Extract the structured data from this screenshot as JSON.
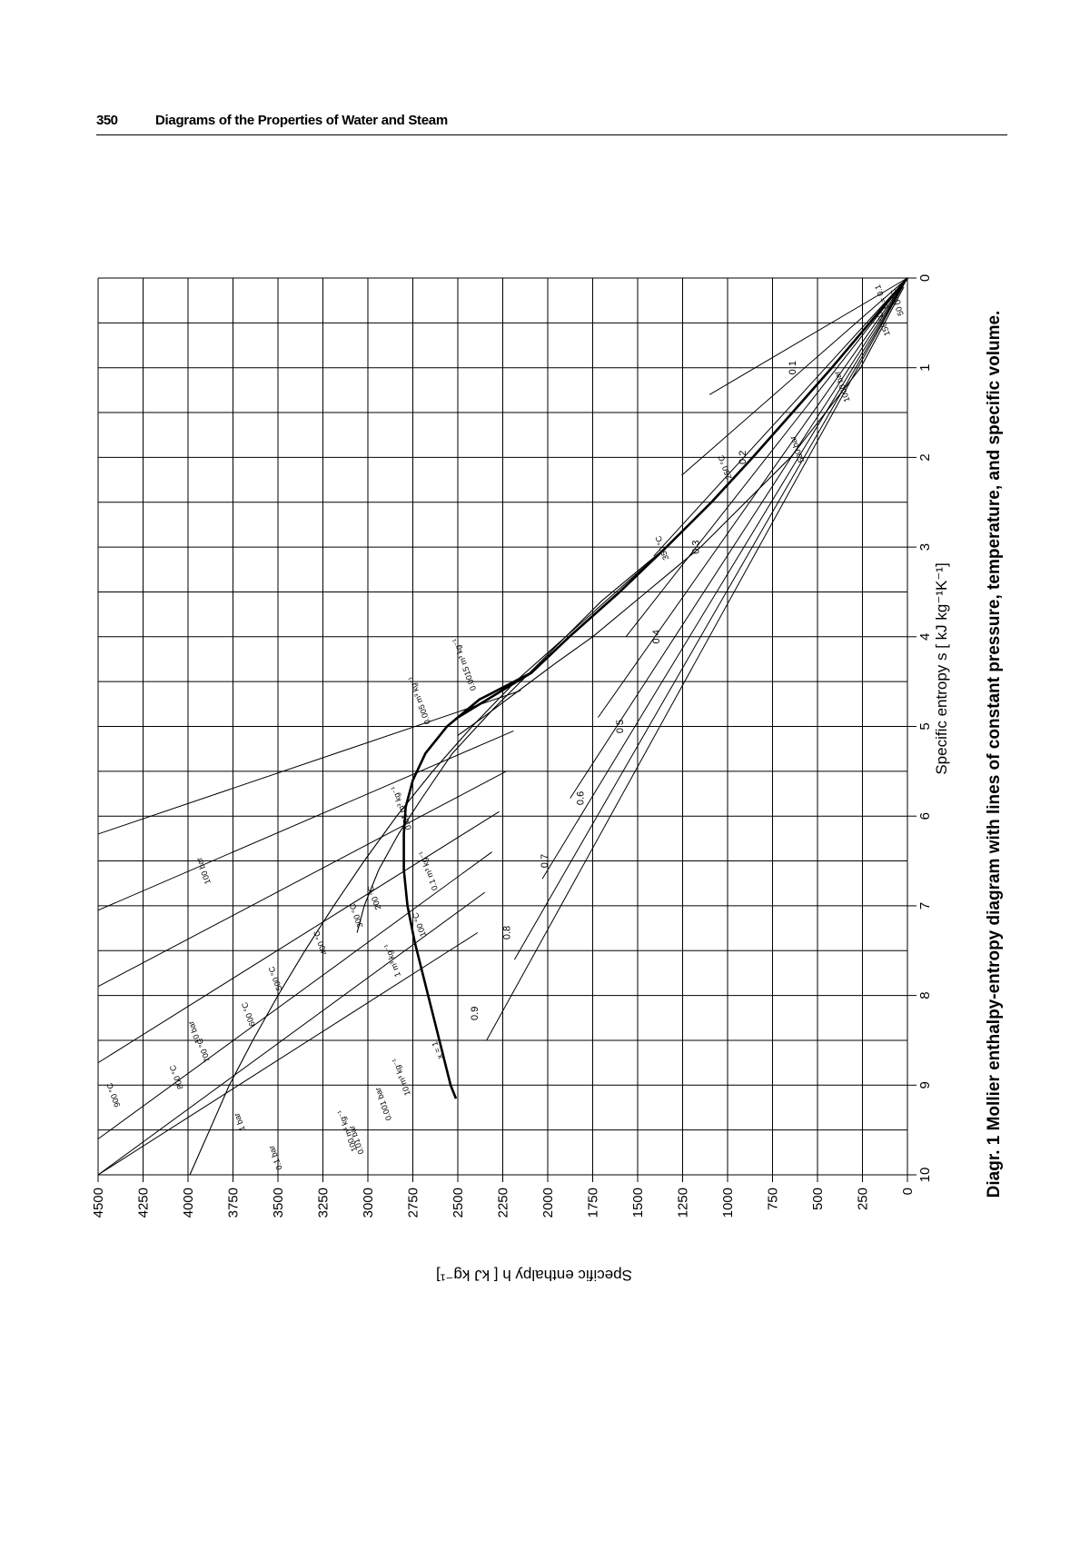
{
  "page": {
    "number": "350",
    "header_title": "Diagrams of the Properties of Water and Steam",
    "caption": "Diagr. 1  Mollier enthalpy-entropy diagram with lines of constant pressure, temperature, and specific volume."
  },
  "chart_data": {
    "type": "line",
    "title": "",
    "xlabel": "Specific entropy s [ kJ kg⁻¹K⁻¹]",
    "ylabel": "Specific enthalpy h [ kJ kg⁻¹]",
    "xlim": [
      0,
      10
    ],
    "ylim": [
      0,
      4500
    ],
    "x_ticks": [
      "0",
      "1",
      "2",
      "3",
      "4",
      "5",
      "6",
      "7",
      "8",
      "9",
      "10"
    ],
    "y_ticks": [
      "0",
      "250",
      "500",
      "750",
      "1000",
      "1250",
      "1500",
      "1750",
      "2000",
      "2250",
      "2500",
      "2750",
      "3000",
      "3250",
      "3500",
      "3750",
      "4000",
      "4250",
      "4500"
    ],
    "grid": true,
    "series": [
      {
        "name": "",
        "x": [
          0,
          0.5,
          1,
          1.5,
          2,
          2.5,
          3,
          3.5,
          4,
          4.4,
          4.9
        ],
        "y": [
          0,
          210,
          420,
          640,
          860,
          1090,
          1340,
          1600,
          1880,
          2090,
          2500
        ]
      },
      {
        "name": "",
        "x": [
          4.4,
          4.7,
          5.0,
          5.3,
          5.6,
          5.9,
          6.2,
          6.6,
          7.0,
          7.4,
          7.8,
          8.2,
          8.6,
          9.0,
          9.15
        ],
        "y": [
          2090,
          2380,
          2560,
          2680,
          2750,
          2790,
          2800,
          2800,
          2780,
          2740,
          2690,
          2640,
          2590,
          2540,
          2510
        ]
      },
      {
        "name": "",
        "x": [
          3,
          3.5,
          4,
          4.5,
          5,
          5.5,
          6,
          6.5,
          7,
          7.5,
          8,
          8.5,
          9,
          9.5,
          10
        ],
        "y": [
          1340,
          1620,
          1900,
          2180,
          2420,
          2640,
          2840,
          3020,
          3190,
          3350,
          3500,
          3640,
          3770,
          3880,
          3990
        ]
      },
      {
        "name": "",
        "x": [
          3,
          3.6,
          4.2,
          4.8,
          5.3,
          5.8,
          6.2,
          6.6,
          7.0,
          7.3
        ],
        "y": [
          1340,
          1700,
          2000,
          2300,
          2530,
          2700,
          2830,
          2940,
          3020,
          3060
        ]
      },
      {
        "name": "",
        "x": [
          0.1,
          1,
          2,
          3,
          3.5,
          4,
          4.3,
          4.6,
          4.9,
          5.1
        ],
        "y": [
          20,
          260,
          650,
          1150,
          1450,
          1750,
          1960,
          2160,
          2360,
          2500
        ]
      }
    ],
    "quality_labels": [
      "0.1",
      "0.2",
      "0.3",
      "0.4",
      "0.5",
      "0.6",
      "0.7",
      "0.8",
      "0.9"
    ],
    "curve_labels": [
      "1000 bar",
      "500 bar",
      "100 bar",
      "10 bar",
      "1 bar",
      "0.1 bar",
      "0.01 bar",
      "0.001 bar",
      "900 °C",
      "800 °C",
      "700 °C",
      "600 °C",
      "500 °C",
      "400 °C",
      "300 °C",
      "200 °C",
      "100 °C",
      "0 °C",
      "350 °C",
      "250 °C",
      "150 °C",
      "50 °C",
      "100 m³ kg⁻¹",
      "10 m³ kg⁻¹",
      "1 m³ kg⁻¹",
      "0.1 m³ kg⁻¹",
      "0.01 m³ kg⁻¹",
      "0.005 m³ kg⁻¹",
      "0.0015 m³ kg⁻¹",
      "x = 1",
      "p = 0.1"
    ]
  }
}
